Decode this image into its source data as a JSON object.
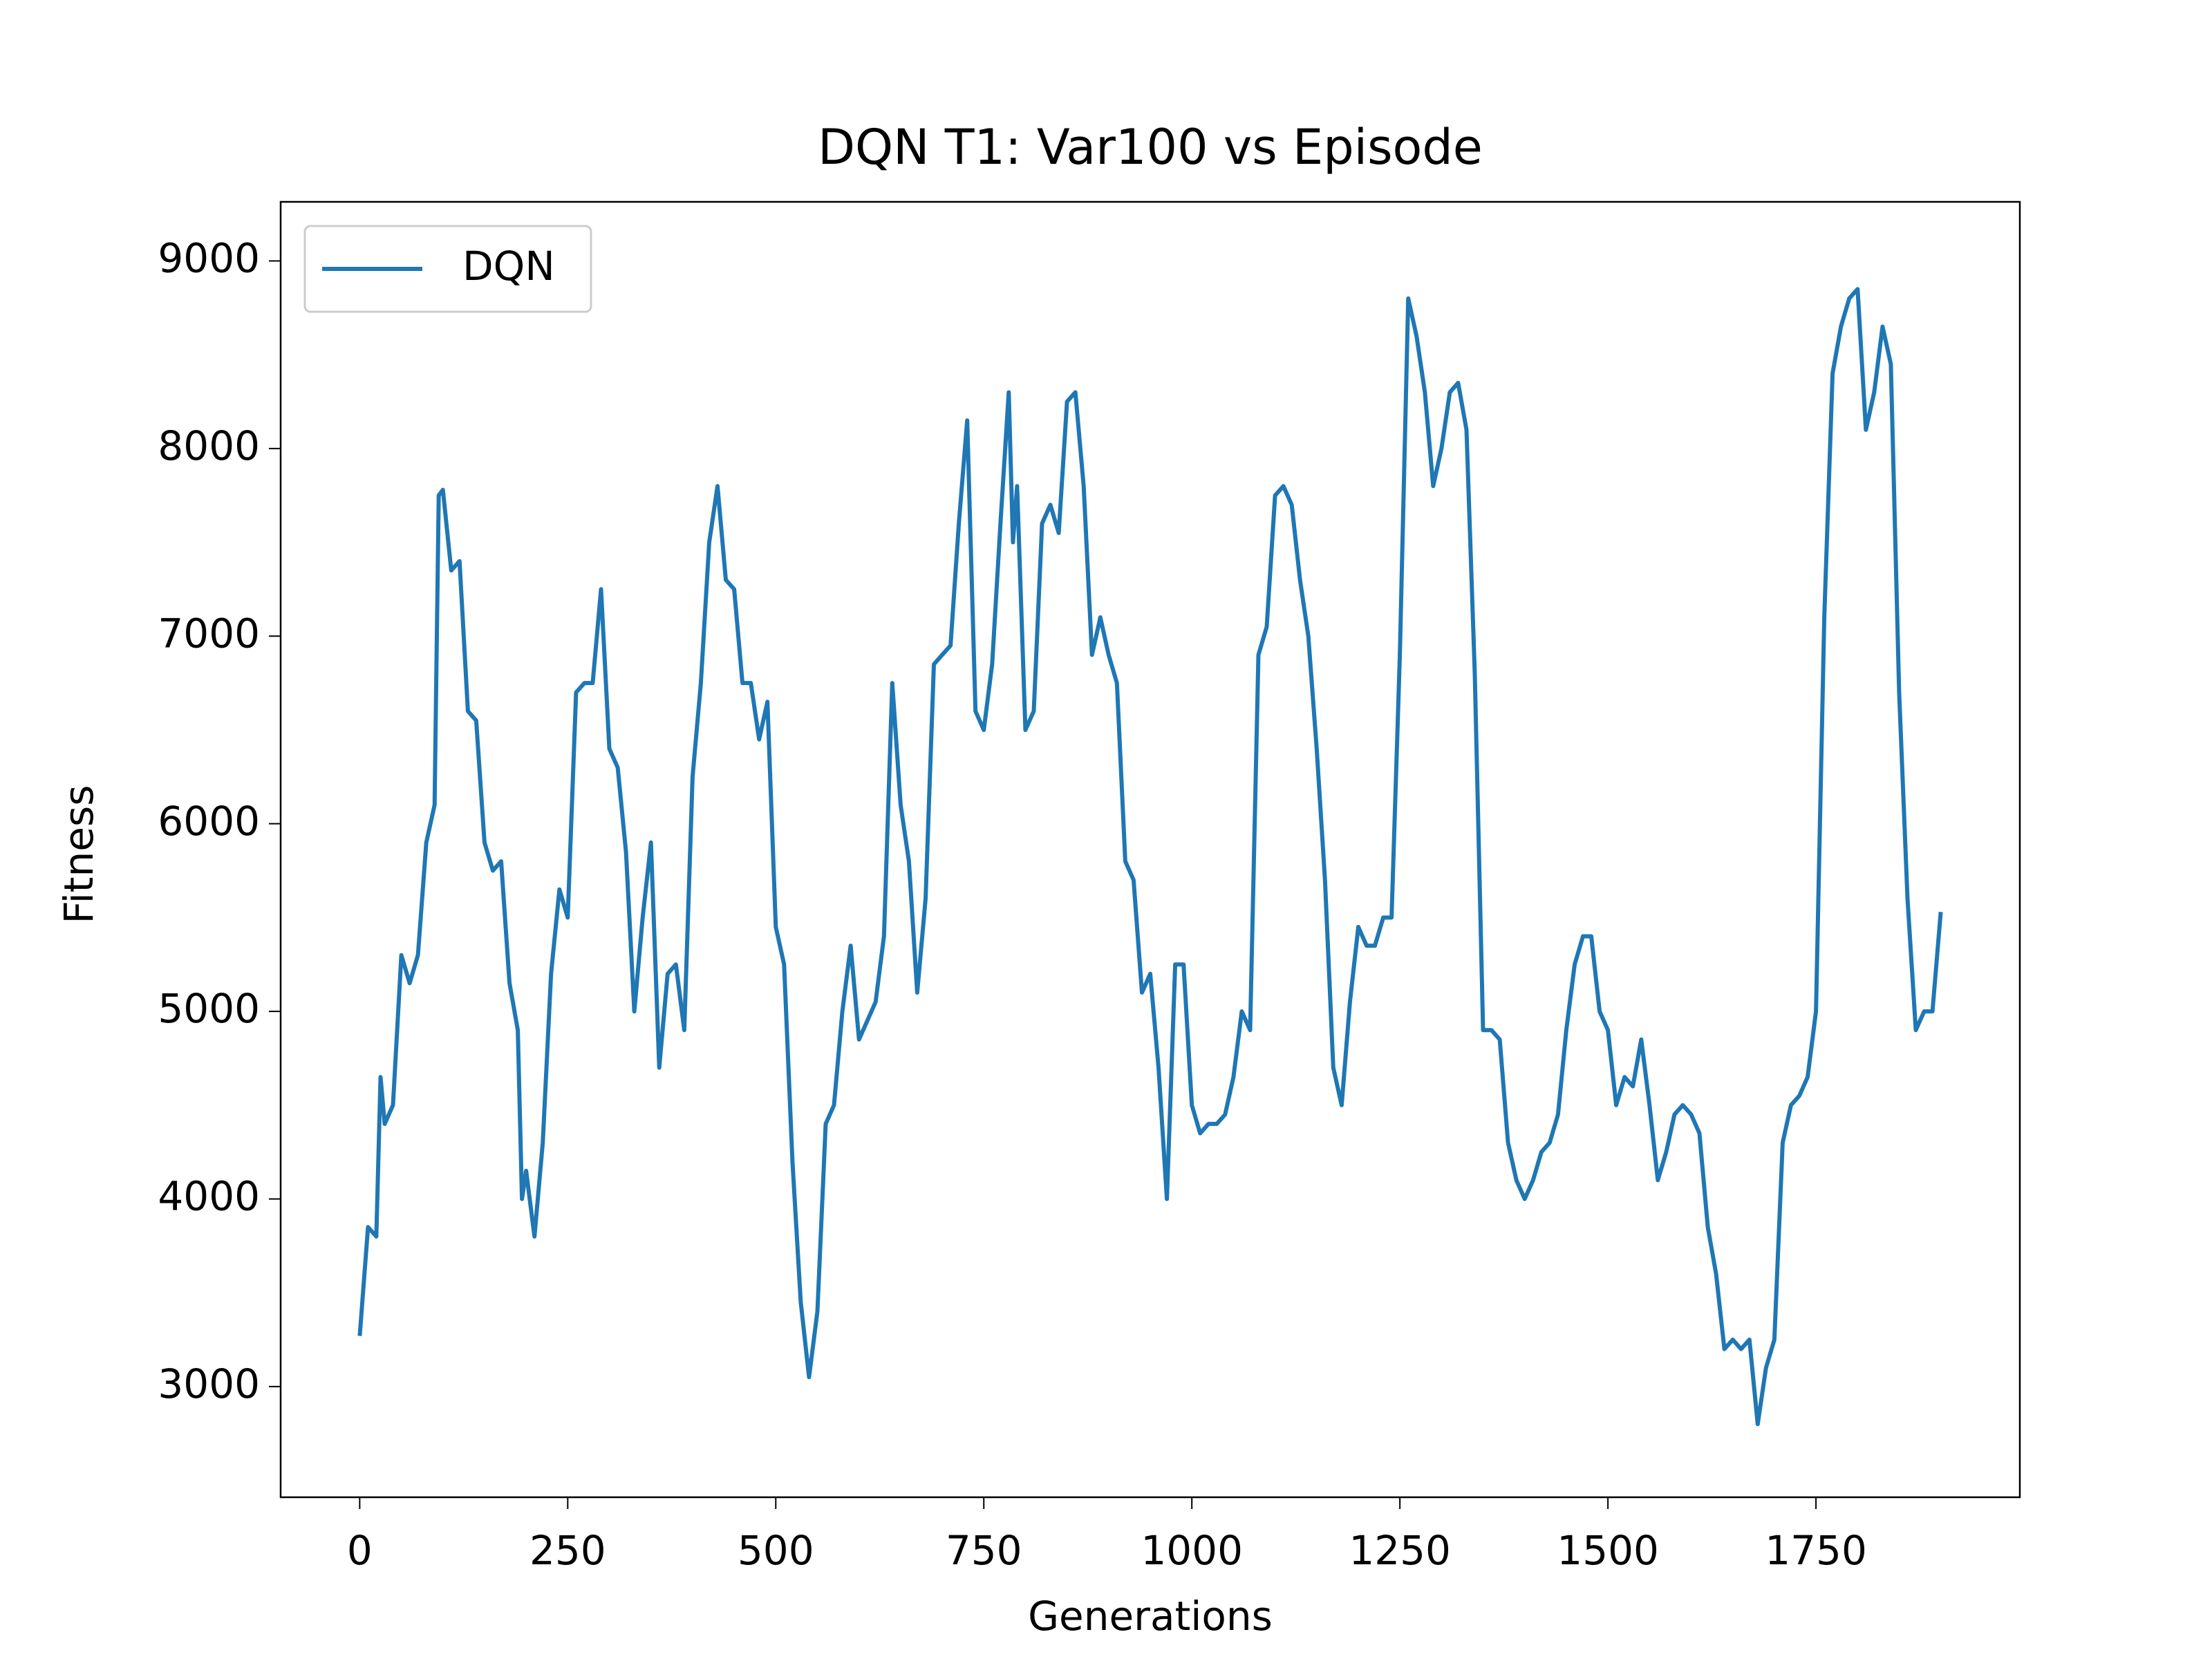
{
  "chart_data": {
    "type": "line",
    "title": "DQN T1: Var100 vs Episode",
    "xlabel": "Generations",
    "ylabel": "Fitness",
    "x": [
      0,
      10,
      20,
      25,
      30,
      40,
      50,
      60,
      70,
      80,
      90,
      95,
      100,
      110,
      120,
      130,
      140,
      150,
      160,
      170,
      180,
      190,
      195,
      200,
      210,
      220,
      230,
      240,
      250,
      260,
      270,
      280,
      290,
      300,
      310,
      320,
      330,
      340,
      350,
      360,
      370,
      380,
      390,
      400,
      410,
      420,
      430,
      440,
      450,
      460,
      470,
      480,
      490,
      500,
      510,
      520,
      530,
      540,
      550,
      560,
      570,
      580,
      590,
      600,
      610,
      620,
      630,
      640,
      650,
      660,
      670,
      680,
      690,
      700,
      710,
      720,
      730,
      740,
      750,
      760,
      770,
      780,
      785,
      790,
      800,
      810,
      820,
      830,
      840,
      850,
      860,
      870,
      880,
      890,
      900,
      910,
      920,
      930,
      940,
      950,
      960,
      970,
      980,
      990,
      1000,
      1010,
      1020,
      1030,
      1040,
      1050,
      1060,
      1070,
      1080,
      1090,
      1100,
      1110,
      1120,
      1130,
      1140,
      1150,
      1160,
      1170,
      1180,
      1190,
      1200,
      1210,
      1220,
      1230,
      1240,
      1250,
      1260,
      1270,
      1280,
      1290,
      1300,
      1310,
      1320,
      1330,
      1340,
      1350,
      1360,
      1370,
      1380,
      1390,
      1400,
      1410,
      1420,
      1430,
      1440,
      1450,
      1460,
      1470,
      1480,
      1490,
      1500,
      1510,
      1520,
      1530,
      1540,
      1550,
      1560,
      1570,
      1580,
      1590,
      1600,
      1610,
      1620,
      1630,
      1640,
      1650,
      1660,
      1670,
      1680,
      1690,
      1700,
      1710,
      1720,
      1730,
      1740,
      1750,
      1760,
      1770,
      1780,
      1790,
      1800,
      1810,
      1820,
      1830,
      1840,
      1850,
      1860,
      1870,
      1880,
      1890,
      1900
    ],
    "series": [
      {
        "name": "DQN",
        "color": "#1f77b4",
        "values": [
          3270,
          3850,
          3800,
          4650,
          4400,
          4500,
          5300,
          5150,
          5300,
          5900,
          6100,
          7750,
          7780,
          7350,
          7400,
          6600,
          6550,
          5900,
          5750,
          5800,
          5150,
          4900,
          4000,
          4150,
          3800,
          4300,
          5200,
          5650,
          5500,
          6700,
          6750,
          6750,
          7250,
          6400,
          6300,
          5850,
          5000,
          5500,
          5900,
          4700,
          5200,
          5250,
          4900,
          6250,
          6750,
          7500,
          7800,
          7300,
          7250,
          6750,
          6750,
          6450,
          6650,
          5450,
          5250,
          4200,
          3450,
          3050,
          3400,
          4400,
          4500,
          5000,
          5350,
          4850,
          4950,
          5050,
          5400,
          6750,
          6100,
          5800,
          5100,
          5600,
          6850,
          6900,
          6950,
          7600,
          8150,
          6600,
          6500,
          6850,
          7600,
          8300,
          7500,
          7800,
          6500,
          6600,
          7600,
          7700,
          7550,
          8250,
          8300,
          7800,
          6900,
          7100,
          6900,
          6750,
          5800,
          5700,
          5100,
          5200,
          4700,
          4000,
          5250,
          5250,
          4500,
          4350,
          4400,
          4400,
          4450,
          4650,
          5000,
          4900,
          6900,
          7050,
          7750,
          7800,
          7700,
          7300,
          7000,
          6400,
          5700,
          4700,
          4500,
          5050,
          5450,
          5350,
          5350,
          5500,
          5500,
          6900,
          8800,
          8600,
          8300,
          7800,
          8000,
          8300,
          8350,
          8100,
          6800,
          4900,
          4900,
          4850,
          4300,
          4100,
          4000,
          4100,
          4250,
          4300,
          4450,
          4900,
          5250,
          5400,
          5400,
          5000,
          4900,
          4500,
          4650,
          4600,
          4850,
          4500,
          4100,
          4250,
          4450,
          4500,
          4450,
          4350,
          3850,
          3600,
          3200,
          3250,
          3200,
          3250,
          2800,
          3100,
          3250,
          4300,
          4500,
          4550,
          4650,
          5000,
          7100,
          8400,
          8650,
          8800,
          8850,
          8100,
          8300,
          8650,
          8450,
          6700,
          5600,
          4900,
          5000,
          5000,
          5530
        ]
      }
    ],
    "xlim": [
      -95,
      1995
    ],
    "ylim": [
      2410,
      9315
    ],
    "xticks": [
      0,
      250,
      500,
      750,
      1000,
      1250,
      1500,
      1750
    ],
    "yticks": [
      3000,
      4000,
      5000,
      6000,
      7000,
      8000,
      9000
    ],
    "legend": "upper left"
  }
}
